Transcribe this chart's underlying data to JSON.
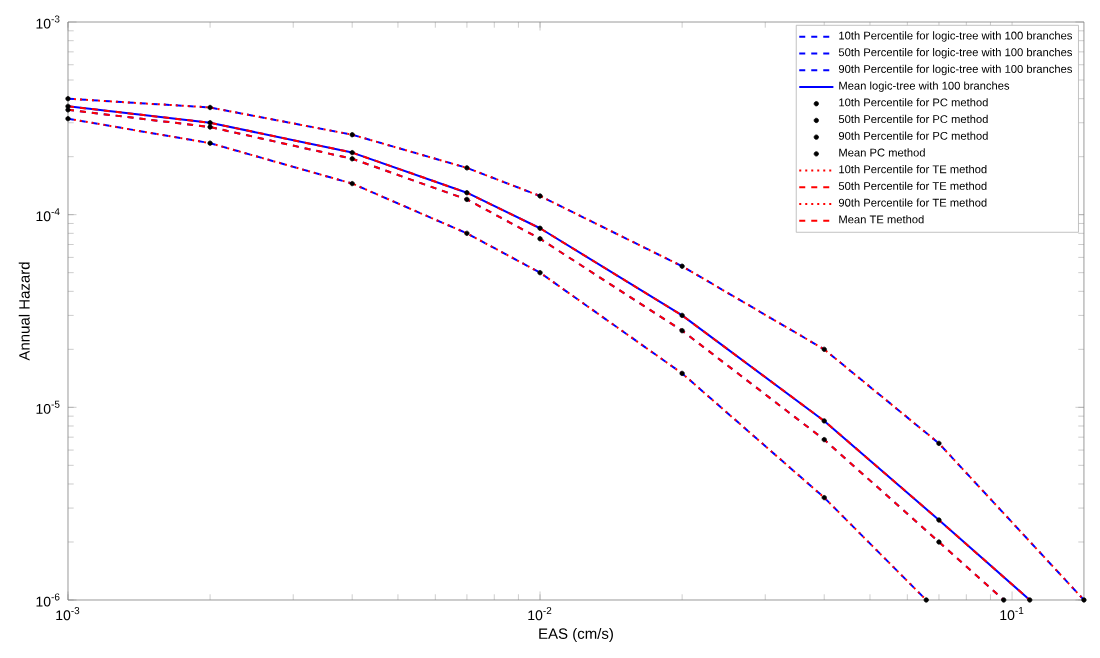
{
  "chart_data": {
    "type": "line",
    "xlabel": "EAS (cm/s)",
    "ylabel": "Annual Hazard",
    "log": "xy",
    "grid": false,
    "legend": "top right",
    "xlim": [
      0.001,
      0.142
    ],
    "ylim": [
      1e-06,
      0.001
    ],
    "xticks": [
      {
        "value": 0.001,
        "label": "10$^{-3}$"
      },
      {
        "value": 0.01,
        "label": "10$^{-2}$"
      },
      {
        "value": 0.1,
        "label": "10$^{-1}$"
      }
    ],
    "yticks": [
      {
        "value": 1e-06,
        "label": "10$^{-6}$"
      },
      {
        "value": 1e-05,
        "label": "10$^{-5}$"
      },
      {
        "value": 0.0001,
        "label": "10$^{-4}$"
      },
      {
        "value": 0.001,
        "label": "10$^{-3}$"
      }
    ],
    "series": [
      {
        "name": "10th Percentile for logic-tree with 100 branches",
        "color": "#0000ff",
        "line_style": "dashed",
        "x": [
          0.001,
          0.002,
          0.004,
          0.007,
          0.01,
          0.02,
          0.04,
          0.0658
        ],
        "values": [
          0.000315,
          0.000235,
          0.000145,
          8e-05,
          5e-05,
          1.5e-05,
          3.4e-06,
          1e-06
        ]
      },
      {
        "name": "50th Percentile for logic-tree with 100 branches",
        "color": "#0000ff",
        "line_style": "dashed",
        "x": [
          0.001,
          0.002,
          0.004,
          0.007,
          0.01,
          0.02,
          0.04,
          0.07,
          0.096
        ],
        "values": [
          0.00035,
          0.000285,
          0.000195,
          0.00012,
          7.5e-05,
          2.5e-05,
          6.8e-06,
          2e-06,
          1e-06
        ]
      },
      {
        "name": "90th Percentile for logic-tree with 100 branches",
        "color": "#0000ff",
        "line_style": "dashed",
        "x": [
          0.001,
          0.002,
          0.004,
          0.007,
          0.01,
          0.02,
          0.04,
          0.07,
          0.142
        ],
        "values": [
          0.0004,
          0.00036,
          0.00026,
          0.000175,
          0.000125,
          5.4e-05,
          2e-05,
          6.5e-06,
          1e-06
        ]
      },
      {
        "name": "Mean logic-tree with 100 branches",
        "color": "#0000ff",
        "line_style": "solid",
        "x": [
          0.001,
          0.002,
          0.004,
          0.007,
          0.01,
          0.02,
          0.04,
          0.07,
          0.109
        ],
        "values": [
          0.000365,
          0.0003,
          0.00021,
          0.00013,
          8.5e-05,
          3e-05,
          8.5e-06,
          2.6e-06,
          1e-06
        ]
      },
      {
        "name": "10th Percentile for PC method",
        "color": "#000000",
        "type": "scatter",
        "marker": "circle",
        "x": [
          0.001,
          0.002,
          0.004,
          0.007,
          0.01,
          0.02,
          0.04,
          0.0658
        ],
        "values": [
          0.000315,
          0.000235,
          0.000145,
          8e-05,
          5e-05,
          1.5e-05,
          3.4e-06,
          1e-06
        ]
      },
      {
        "name": "50th Percentile for PC method",
        "color": "#000000",
        "type": "scatter",
        "marker": "circle",
        "x": [
          0.001,
          0.002,
          0.004,
          0.007,
          0.01,
          0.02,
          0.04,
          0.07,
          0.096
        ],
        "values": [
          0.00035,
          0.000285,
          0.000195,
          0.00012,
          7.5e-05,
          2.5e-05,
          6.8e-06,
          2e-06,
          1e-06
        ]
      },
      {
        "name": "90th Percentile for PC method",
        "color": "#000000",
        "type": "scatter",
        "marker": "circle",
        "x": [
          0.001,
          0.002,
          0.004,
          0.007,
          0.01,
          0.02,
          0.04,
          0.07,
          0.142
        ],
        "values": [
          0.0004,
          0.00036,
          0.00026,
          0.000175,
          0.000125,
          5.4e-05,
          2e-05,
          6.5e-06,
          1e-06
        ]
      },
      {
        "name": "Mean PC method",
        "color": "#000000",
        "type": "scatter",
        "marker": "circle",
        "x": [
          0.001,
          0.002,
          0.004,
          0.007,
          0.01,
          0.02,
          0.04,
          0.07,
          0.109
        ],
        "values": [
          0.000365,
          0.0003,
          0.00021,
          0.00013,
          8.5e-05,
          3e-05,
          8.5e-06,
          2.6e-06,
          1e-06
        ]
      },
      {
        "name": "10th Percentile for TE method",
        "color": "#ff0000",
        "line_style": "dotted",
        "x": [
          0.001,
          0.002,
          0.004,
          0.007,
          0.01,
          0.02,
          0.04,
          0.0658
        ],
        "values": [
          0.000315,
          0.000235,
          0.000145,
          8e-05,
          5e-05,
          1.5e-05,
          3.4e-06,
          1e-06
        ]
      },
      {
        "name": "50th Percentile for TE method",
        "color": "#ff0000",
        "line_style": "dashed",
        "x": [
          0.001,
          0.002,
          0.004,
          0.007,
          0.01,
          0.02,
          0.04,
          0.07,
          0.096
        ],
        "values": [
          0.00035,
          0.000285,
          0.000195,
          0.00012,
          7.5e-05,
          2.5e-05,
          6.8e-06,
          2e-06,
          1e-06
        ]
      },
      {
        "name": "90th Percentile for TE method",
        "color": "#ff0000",
        "line_style": "dotted",
        "x": [
          0.001,
          0.002,
          0.004,
          0.007,
          0.01,
          0.02,
          0.04,
          0.07,
          0.142
        ],
        "values": [
          0.0004,
          0.00036,
          0.00026,
          0.000175,
          0.000125,
          5.4e-05,
          2e-05,
          6.5e-06,
          1e-06
        ]
      },
      {
        "name": "Mean TE method",
        "color": "#ff0000",
        "line_style": "dashed",
        "x": [
          0.001,
          0.002,
          0.004,
          0.007,
          0.01,
          0.02,
          0.04,
          0.07,
          0.109
        ],
        "values": [
          0.000365,
          0.0003,
          0.00021,
          0.00013,
          8.5e-05,
          3e-05,
          8.5e-06,
          2.6e-06,
          1e-06
        ]
      }
    ]
  }
}
